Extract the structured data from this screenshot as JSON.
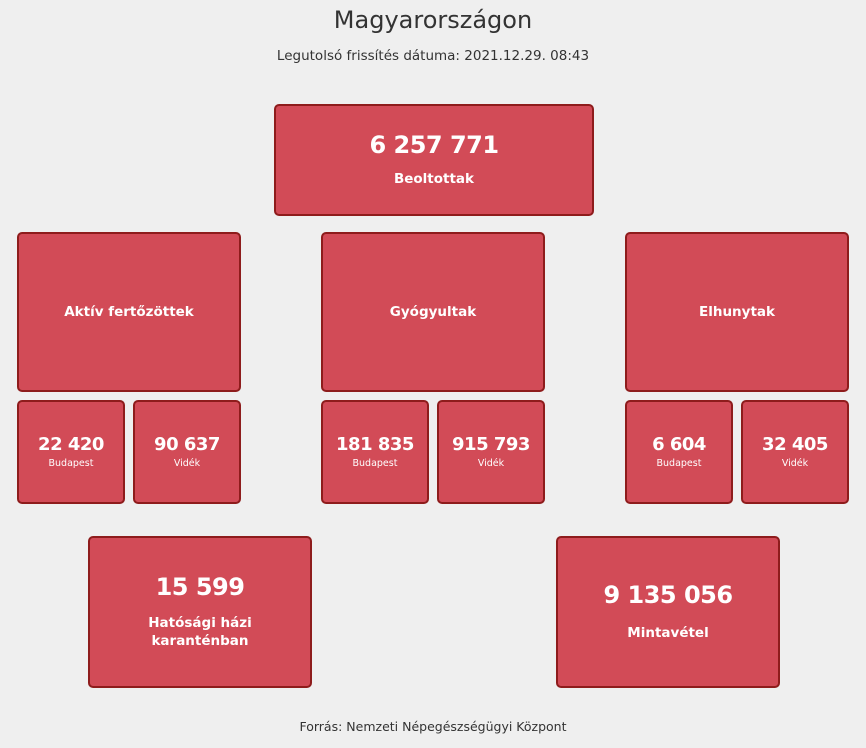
{
  "header": {
    "title": "Magyarországon",
    "updated_label": "Legutolsó frissítés dátuma: 2021.12.29. 08:43"
  },
  "vaccinated": {
    "value": "6 257 771",
    "label": "Beoltottak"
  },
  "groups": {
    "active": {
      "label": "Aktív fertőzöttek",
      "budapest": {
        "value": "22 420",
        "label": "Budapest"
      },
      "countryside": {
        "value": "90 637",
        "label": "Vidék"
      }
    },
    "recovered": {
      "label": "Gyógyultak",
      "budapest": {
        "value": "181 835",
        "label": "Budapest"
      },
      "countryside": {
        "value": "915 793",
        "label": "Vidék"
      }
    },
    "deceased": {
      "label": "Elhunytak",
      "budapest": {
        "value": "6 604",
        "label": "Budapest"
      },
      "countryside": {
        "value": "32 405",
        "label": "Vidék"
      }
    }
  },
  "quarantine": {
    "value": "15 599",
    "label_line1": "Hatósági házi",
    "label_line2": "karanténban"
  },
  "samples": {
    "value": "9 135 056",
    "label": "Mintavétel"
  },
  "footer": {
    "source": "Forrás: Nemzeti Népegészségügyi Központ"
  }
}
